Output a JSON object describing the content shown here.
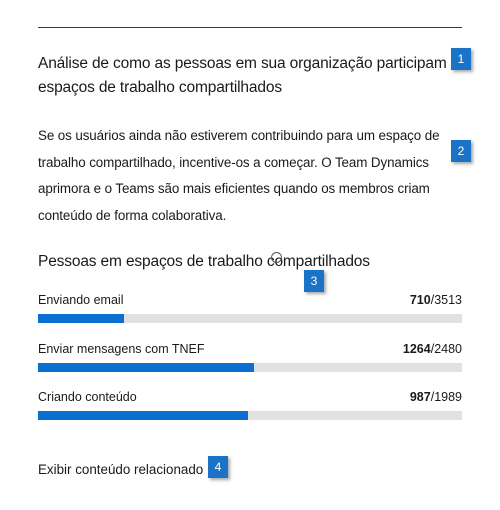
{
  "heading": "Análise de como as pessoas em sua organização participam de espaços de trabalho compartilhados",
  "description": "Se os usuários ainda não estiverem contribuindo para um espaço de trabalho compartilhado, incentive-os a começar. O Team Dynamics aprimora e o Teams são mais eficientes quando os membros criam conteúdo de forma colaborativa.",
  "section_title": "Pessoas em espaços de trabalho compartilhados",
  "metrics": [
    {
      "label": "Enviando email",
      "value": "710",
      "total": "/3513",
      "fraction": 0.202
    },
    {
      "label": "Enviar mensagens com TNEF",
      "value": "1264",
      "total": "/2480",
      "fraction": 0.51
    },
    {
      "label": "Criando conteúdo",
      "value": "987",
      "total": "/1989",
      "fraction": 0.496
    }
  ],
  "link_text": "Exibir conteúdo relacionado",
  "callouts": [
    "1",
    "2",
    "3",
    "4"
  ],
  "colors": {
    "bar_fill": "#0a6fd0",
    "bar_track": "#e1e1e1",
    "callout": "#1b73c8"
  },
  "icons": {
    "section_info": "info-icon"
  }
}
